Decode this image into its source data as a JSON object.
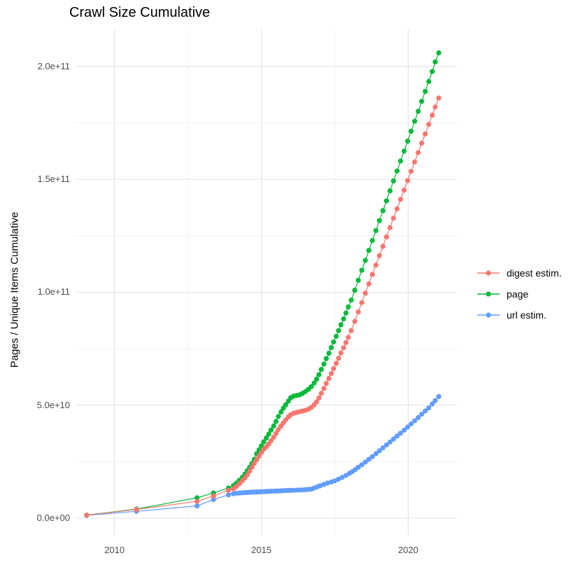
{
  "styles": {
    "background": "#FFFFFF",
    "grid_major": "#E4E4E4",
    "grid_minor": "#F1F1F1",
    "axis_text": "#4D4D4D",
    "text": "#000000"
  },
  "chart_data": {
    "type": "scatter",
    "title": "Crawl Size Cumulative",
    "xlabel": "",
    "ylabel": "Pages / Unique Items Cumulative",
    "xlim": [
      2008.65,
      2021.66
    ],
    "ylim": [
      -7440000000.0,
      216370000000.0
    ],
    "grid": true,
    "legend_position": "right",
    "x_ticks": [
      {
        "value": 2010,
        "label": "2010"
      },
      {
        "value": 2015,
        "label": "2015"
      },
      {
        "value": 2020,
        "label": "2020"
      }
    ],
    "x_minor_ticks": [
      2012.5,
      2017.5
    ],
    "y_ticks": [
      {
        "value": 0,
        "label": "0.0e+00"
      },
      {
        "value": 50000000000.0,
        "label": "5.0e+10"
      },
      {
        "value": 100000000000.0,
        "label": "1.0e+11"
      },
      {
        "value": 150000000000.0,
        "label": "1.5e+11"
      },
      {
        "value": 200000000000.0,
        "label": "2.0e+11"
      }
    ],
    "y_minor_ticks": [
      25000000000.0,
      75000000000.0,
      125000000000.0,
      175000000000.0
    ],
    "series": [
      {
        "name": "digest estim.",
        "color": "#F8766D",
        "points": [
          [
            2009.05,
            1300000000.0
          ],
          [
            2010.75,
            3800000000.0
          ],
          [
            2012.81,
            7400000000.0
          ],
          [
            2013.37,
            9800000000.0
          ],
          [
            2013.88,
            12300000000.0
          ],
          [
            2014.05,
            13000000000.0
          ],
          [
            2014.15,
            14000000000.0
          ],
          [
            2014.25,
            15200000000.0
          ],
          [
            2014.35,
            16500000000.0
          ],
          [
            2014.44,
            17800000000.0
          ],
          [
            2014.52,
            19200000000.0
          ],
          [
            2014.6,
            20800000000.0
          ],
          [
            2014.68,
            22500000000.0
          ],
          [
            2014.76,
            24200000000.0
          ],
          [
            2014.84,
            25800000000.0
          ],
          [
            2014.92,
            27400000000.0
          ],
          [
            2015.0,
            29000000000.0
          ],
          [
            2015.08,
            30500000000.0
          ],
          [
            2015.17,
            31600000000.0
          ],
          [
            2015.25,
            32800000000.0
          ],
          [
            2015.33,
            34200000000.0
          ],
          [
            2015.42,
            35800000000.0
          ],
          [
            2015.5,
            37500000000.0
          ],
          [
            2015.58,
            39200000000.0
          ],
          [
            2015.67,
            40800000000.0
          ],
          [
            2015.75,
            42200000000.0
          ],
          [
            2015.83,
            43500000000.0
          ],
          [
            2015.92,
            44800000000.0
          ],
          [
            2016.0,
            45800000000.0
          ],
          [
            2016.1,
            46400000000.0
          ],
          [
            2016.2,
            46800000000.0
          ],
          [
            2016.3,
            47100000000.0
          ],
          [
            2016.4,
            47400000000.0
          ],
          [
            2016.5,
            47700000000.0
          ],
          [
            2016.6,
            48200000000.0
          ],
          [
            2016.7,
            49000000000.0
          ],
          [
            2016.8,
            50200000000.0
          ],
          [
            2016.88,
            51500000000.0
          ],
          [
            2016.96,
            53200000000.0
          ],
          [
            2017.04,
            55200000000.0
          ],
          [
            2017.13,
            57400000000.0
          ],
          [
            2017.21,
            59600000000.0
          ],
          [
            2017.3,
            61800000000.0
          ],
          [
            2017.38,
            64000000000.0
          ],
          [
            2017.46,
            66200000000.0
          ],
          [
            2017.55,
            68500000000.0
          ],
          [
            2017.63,
            70800000000.0
          ],
          [
            2017.71,
            73100000000.0
          ],
          [
            2017.8,
            75400000000.0
          ],
          [
            2017.88,
            77700000000.0
          ],
          [
            2017.96,
            80000000000.0
          ],
          [
            2018.06,
            83000000000.0
          ],
          [
            2018.18,
            87100000000.0
          ],
          [
            2018.3,
            91300000000.0
          ],
          [
            2018.42,
            95400000000.0
          ],
          [
            2018.54,
            99600000000.0
          ],
          [
            2018.66,
            103700000000.0
          ],
          [
            2018.78,
            107900000000.0
          ],
          [
            2018.9,
            112000000000.0
          ],
          [
            2019.02,
            116200000000.0
          ],
          [
            2019.14,
            120300000000.0
          ],
          [
            2019.26,
            124500000000.0
          ],
          [
            2019.38,
            128600000000.0
          ],
          [
            2019.5,
            132800000000.0
          ],
          [
            2019.62,
            136900000000.0
          ],
          [
            2019.74,
            141100000000.0
          ],
          [
            2019.86,
            145200000000.0
          ],
          [
            2019.98,
            149400000000.0
          ],
          [
            2020.1,
            153500000000.0
          ],
          [
            2020.22,
            157700000000.0
          ],
          [
            2020.34,
            161800000000.0
          ],
          [
            2020.46,
            166000000000.0
          ],
          [
            2020.58,
            170100000000.0
          ],
          [
            2020.7,
            174300000000.0
          ],
          [
            2020.82,
            178400000000.0
          ],
          [
            2020.92,
            182000000000.0
          ],
          [
            2021.04,
            186000000000.0
          ]
        ]
      },
      {
        "name": "page",
        "color": "#00BA38",
        "points": [
          [
            2009.05,
            1300000000.0
          ],
          [
            2010.75,
            4000000000.0
          ],
          [
            2012.81,
            9000000000.0
          ],
          [
            2013.37,
            11100000000.0
          ],
          [
            2013.88,
            13300000000.0
          ],
          [
            2014.05,
            14400000000.0
          ],
          [
            2014.15,
            15500000000.0
          ],
          [
            2014.25,
            16700000000.0
          ],
          [
            2014.35,
            18000000000.0
          ],
          [
            2014.44,
            19500000000.0
          ],
          [
            2014.52,
            21000000000.0
          ],
          [
            2014.6,
            22500000000.0
          ],
          [
            2014.68,
            24200000000.0
          ],
          [
            2014.76,
            26000000000.0
          ],
          [
            2014.84,
            28500000000.0
          ],
          [
            2014.92,
            30200000000.0
          ],
          [
            2015.0,
            32000000000.0
          ],
          [
            2015.08,
            33800000000.0
          ],
          [
            2015.17,
            35500000000.0
          ],
          [
            2015.25,
            37200000000.0
          ],
          [
            2015.33,
            39000000000.0
          ],
          [
            2015.42,
            40800000000.0
          ],
          [
            2015.5,
            42800000000.0
          ],
          [
            2015.58,
            45000000000.0
          ],
          [
            2015.67,
            47000000000.0
          ],
          [
            2015.75,
            48700000000.0
          ],
          [
            2015.83,
            50200000000.0
          ],
          [
            2015.92,
            51800000000.0
          ],
          [
            2016.0,
            53300000000.0
          ],
          [
            2016.1,
            54000000000.0
          ],
          [
            2016.2,
            54300000000.0
          ],
          [
            2016.3,
            54600000000.0
          ],
          [
            2016.4,
            55200000000.0
          ],
          [
            2016.5,
            56000000000.0
          ],
          [
            2016.6,
            57000000000.0
          ],
          [
            2016.7,
            58200000000.0
          ],
          [
            2016.8,
            59800000000.0
          ],
          [
            2016.88,
            61500000000.0
          ],
          [
            2016.96,
            63500000000.0
          ],
          [
            2017.04,
            65800000000.0
          ],
          [
            2017.13,
            68200000000.0
          ],
          [
            2017.21,
            70600000000.0
          ],
          [
            2017.3,
            73000000000.0
          ],
          [
            2017.38,
            75500000000.0
          ],
          [
            2017.46,
            78000000000.0
          ],
          [
            2017.55,
            80500000000.0
          ],
          [
            2017.63,
            83000000000.0
          ],
          [
            2017.71,
            85600000000.0
          ],
          [
            2017.8,
            88200000000.0
          ],
          [
            2017.88,
            90800000000.0
          ],
          [
            2017.96,
            93500000000.0
          ],
          [
            2018.06,
            96500000000.0
          ],
          [
            2018.18,
            100900000000.0
          ],
          [
            2018.3,
            105300000000.0
          ],
          [
            2018.42,
            109700000000.0
          ],
          [
            2018.54,
            114100000000.0
          ],
          [
            2018.66,
            118500000000.0
          ],
          [
            2018.78,
            122900000000.0
          ],
          [
            2018.9,
            127300000000.0
          ],
          [
            2019.02,
            131700000000.0
          ],
          [
            2019.14,
            136100000000.0
          ],
          [
            2019.26,
            140500000000.0
          ],
          [
            2019.38,
            144900000000.0
          ],
          [
            2019.5,
            149300000000.0
          ],
          [
            2019.62,
            153700000000.0
          ],
          [
            2019.74,
            158100000000.0
          ],
          [
            2019.86,
            162500000000.0
          ],
          [
            2019.98,
            166900000000.0
          ],
          [
            2020.1,
            171300000000.0
          ],
          [
            2020.22,
            175700000000.0
          ],
          [
            2020.34,
            180100000000.0
          ],
          [
            2020.46,
            184500000000.0
          ],
          [
            2020.58,
            188900000000.0
          ],
          [
            2020.7,
            193300000000.0
          ],
          [
            2020.82,
            197700000000.0
          ],
          [
            2020.92,
            202000000000.0
          ],
          [
            2021.04,
            206000000000.0
          ]
        ]
      },
      {
        "name": "url estim.",
        "color": "#619CFF",
        "points": [
          [
            2009.05,
            1200000000.0
          ],
          [
            2010.75,
            3000000000.0
          ],
          [
            2012.81,
            5400000000.0
          ],
          [
            2013.37,
            8200000000.0
          ],
          [
            2013.88,
            10300000000.0
          ],
          [
            2014.05,
            10800000000.0
          ],
          [
            2014.15,
            11000000000.0
          ],
          [
            2014.25,
            11100000000.0
          ],
          [
            2014.35,
            11200000000.0
          ],
          [
            2014.44,
            11300000000.0
          ],
          [
            2014.52,
            11300000000.0
          ],
          [
            2014.6,
            11400000000.0
          ],
          [
            2014.68,
            11500000000.0
          ],
          [
            2014.76,
            11500000000.0
          ],
          [
            2014.84,
            11600000000.0
          ],
          [
            2014.92,
            11600000000.0
          ],
          [
            2015.0,
            11700000000.0
          ],
          [
            2015.08,
            11700000000.0
          ],
          [
            2015.17,
            11800000000.0
          ],
          [
            2015.25,
            11800000000.0
          ],
          [
            2015.33,
            11900000000.0
          ],
          [
            2015.42,
            11900000000.0
          ],
          [
            2015.5,
            12000000000.0
          ],
          [
            2015.58,
            12000000000.0
          ],
          [
            2015.67,
            12100000000.0
          ],
          [
            2015.75,
            12100000000.0
          ],
          [
            2015.83,
            12200000000.0
          ],
          [
            2015.92,
            12200000000.0
          ],
          [
            2016.0,
            12300000000.0
          ],
          [
            2016.1,
            12300000000.0
          ],
          [
            2016.2,
            12400000000.0
          ],
          [
            2016.3,
            12400000000.0
          ],
          [
            2016.4,
            12500000000.0
          ],
          [
            2016.5,
            12600000000.0
          ],
          [
            2016.6,
            12700000000.0
          ],
          [
            2016.7,
            12800000000.0
          ],
          [
            2016.8,
            13300000000.0
          ],
          [
            2016.9,
            13800000000.0
          ],
          [
            2017.0,
            14300000000.0
          ],
          [
            2017.13,
            14900000000.0
          ],
          [
            2017.25,
            15500000000.0
          ],
          [
            2017.38,
            16000000000.0
          ],
          [
            2017.5,
            16500000000.0
          ],
          [
            2017.62,
            17200000000.0
          ],
          [
            2017.75,
            18000000000.0
          ],
          [
            2017.88,
            18900000000.0
          ],
          [
            2018.0,
            19800000000.0
          ],
          [
            2018.1,
            20600000000.0
          ],
          [
            2018.2,
            21500000000.0
          ],
          [
            2018.3,
            22500000000.0
          ],
          [
            2018.42,
            23600000000.0
          ],
          [
            2018.54,
            24800000000.0
          ],
          [
            2018.66,
            26000000000.0
          ],
          [
            2018.78,
            27200000000.0
          ],
          [
            2018.9,
            28500000000.0
          ],
          [
            2019.02,
            29800000000.0
          ],
          [
            2019.14,
            31100000000.0
          ],
          [
            2019.26,
            32400000000.0
          ],
          [
            2019.38,
            33700000000.0
          ],
          [
            2019.5,
            35000000000.0
          ],
          [
            2019.62,
            36300000000.0
          ],
          [
            2019.74,
            37600000000.0
          ],
          [
            2019.86,
            38900000000.0
          ],
          [
            2019.98,
            40300000000.0
          ],
          [
            2020.1,
            41700000000.0
          ],
          [
            2020.22,
            43100000000.0
          ],
          [
            2020.34,
            44500000000.0
          ],
          [
            2020.46,
            46000000000.0
          ],
          [
            2020.58,
            47400000000.0
          ],
          [
            2020.7,
            48800000000.0
          ],
          [
            2020.82,
            50500000000.0
          ],
          [
            2020.92,
            52000000000.0
          ],
          [
            2021.04,
            53800000000.0
          ]
        ]
      }
    ]
  }
}
